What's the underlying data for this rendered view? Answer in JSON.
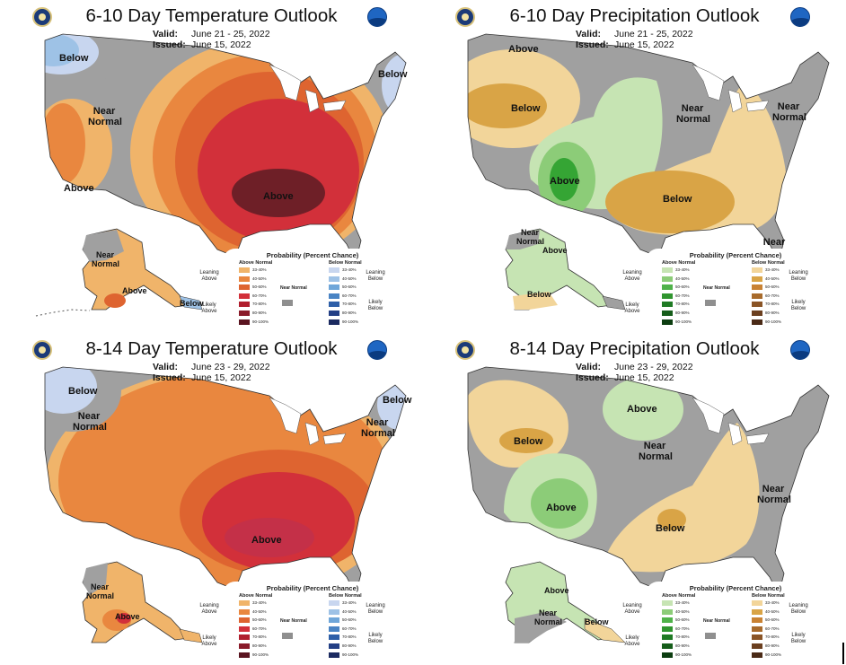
{
  "colors": {
    "near": "#a0a0a0",
    "temp_above": [
      "#f0b46a",
      "#e9873f",
      "#de6430",
      "#d2303a",
      "#a41f2a",
      "#6e1f27"
    ],
    "temp_below": [
      "#c8d6ef",
      "#9ec2e6"
    ],
    "precip_above": [
      "#c6e4b3",
      "#8ccc78",
      "#35a534"
    ],
    "precip_below": [
      "#f2d59a",
      "#d9a446"
    ],
    "water": "#ffffff"
  },
  "legend": {
    "title": "Probability (Percent Chance)",
    "above_normal": "Above Normal",
    "below_normal": "Below Normal",
    "near_normal": "Near Normal",
    "levels": [
      "33-40%",
      "40-50%",
      "50-60%",
      "60-70%",
      "70-80%",
      "80-90%",
      "90-100%"
    ],
    "temp": {
      "leaning_above": "Leaning Above",
      "likely_above": "Likely Above",
      "leaning_below": "Leaning Below",
      "likely_below": "Likely Below"
    },
    "temp_colors_above": [
      "#f0b46a",
      "#e9873f",
      "#de6430",
      "#d2303a",
      "#b01e2d",
      "#8a1b2a",
      "#5a1420"
    ],
    "temp_colors_below": [
      "#c8d6ef",
      "#9ec2e6",
      "#6fa6d9",
      "#4a84c4",
      "#2e5fa8",
      "#233f85",
      "#1b2a60"
    ],
    "precip_colors_above": [
      "#c6e4b3",
      "#8ccc78",
      "#4fb249",
      "#30952f",
      "#1f7a24",
      "#155d1a",
      "#0c3d10"
    ],
    "precip_colors_below": [
      "#f2d59a",
      "#d9a446",
      "#c98233",
      "#a86b2c",
      "#8a5426",
      "#6b3f1f",
      "#4a2a16"
    ]
  },
  "panels": [
    {
      "title": "6-10 Day Temperature Outlook",
      "valid_label": "Valid:",
      "valid": "June 21 - 25, 2022",
      "issued_label": "Issued:",
      "issued": "June 15, 2022",
      "regions": [
        "Below",
        "Near Normal",
        "Above",
        "Below",
        "Above",
        "Near Normal",
        "Above",
        "Below"
      ]
    },
    {
      "title": "6-10 Day Precipitation Outlook",
      "valid_label": "Valid:",
      "valid": "June 21 - 25, 2022",
      "issued_label": "Issued:",
      "issued": "June 15, 2022",
      "regions": [
        "Above",
        "Below",
        "Above",
        "Near Normal",
        "Near Normal",
        "Below",
        "Near Normal",
        "Near Normal",
        "Above",
        "Below"
      ]
    },
    {
      "title": "8-14 Day Temperature Outlook",
      "valid_label": "Valid:",
      "valid": "June 23 - 29, 2022",
      "issued_label": "Issued:",
      "issued": "June 15, 2022",
      "regions": [
        "Below",
        "Near Normal",
        "Below",
        "Near Normal",
        "Above",
        "Near Normal",
        "Above"
      ]
    },
    {
      "title": "8-14 Day Precipitation Outlook",
      "valid_label": "Valid:",
      "valid": "June 23 - 29, 2022",
      "issued_label": "Issued:",
      "issued": "June 15, 2022",
      "regions": [
        "Above",
        "Below",
        "Near Normal",
        "Above",
        "Below",
        "Near Normal",
        "Above",
        "Near Normal",
        "Below"
      ]
    }
  ]
}
